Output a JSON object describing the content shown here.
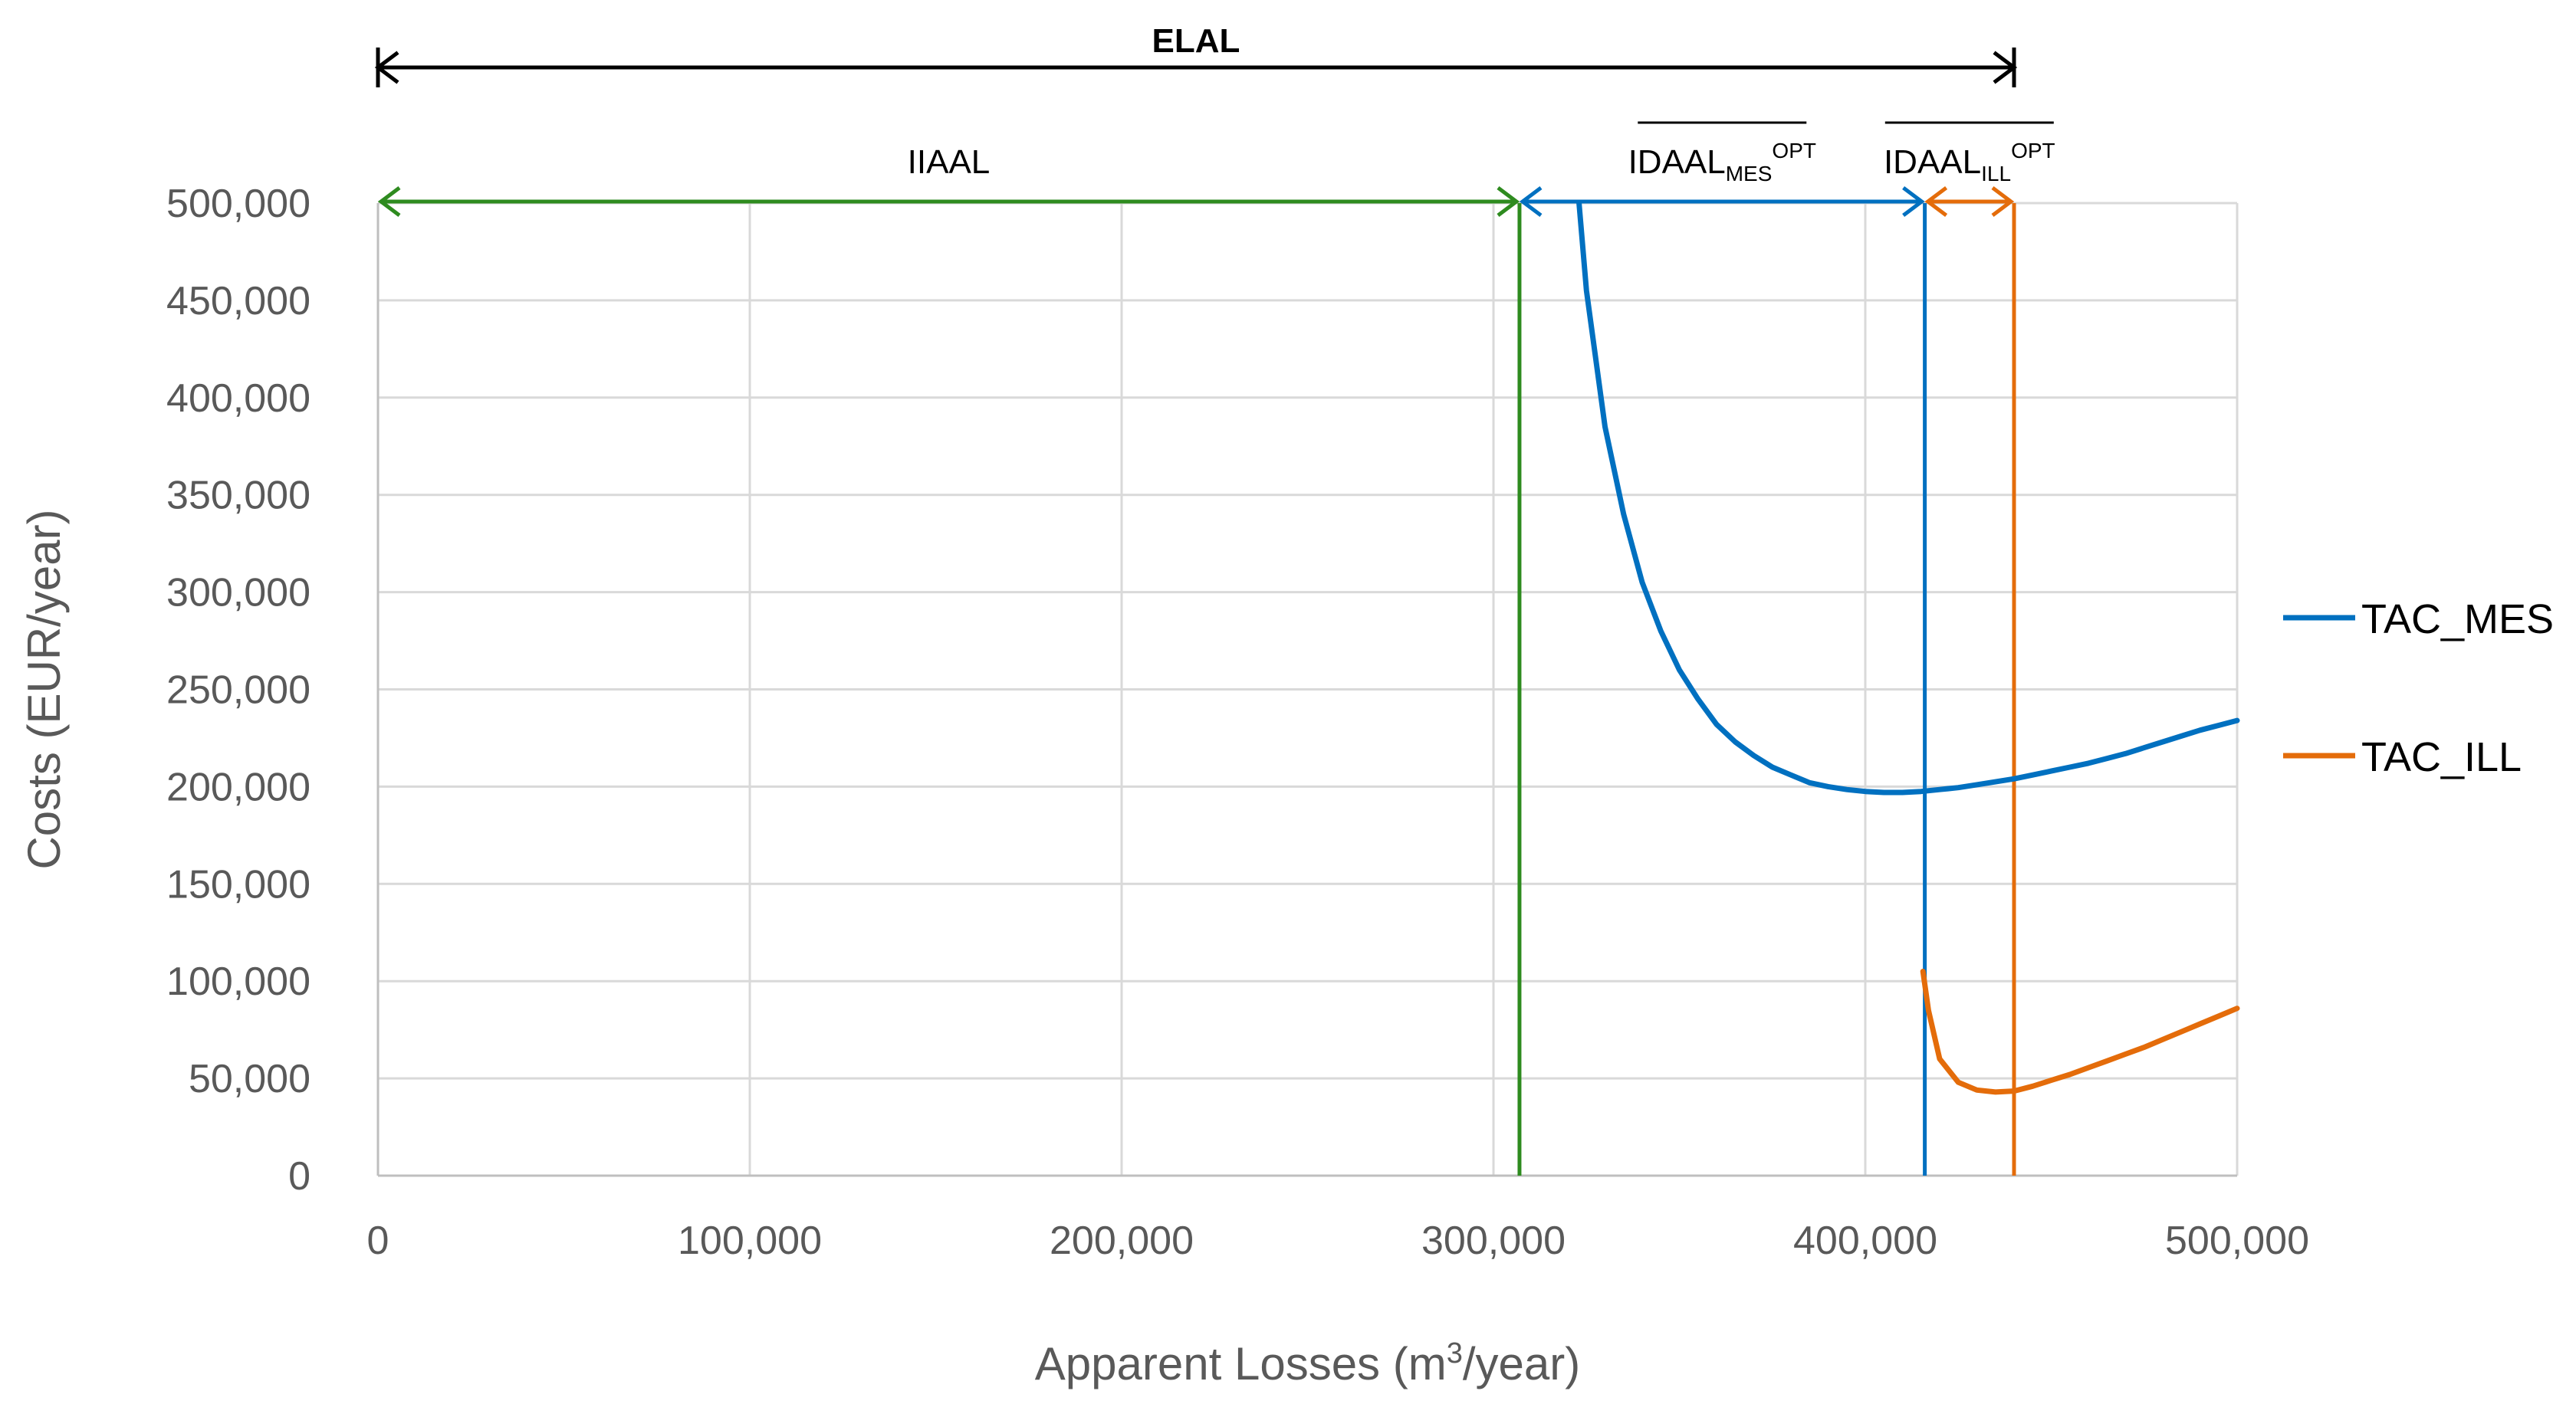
{
  "chart_data": {
    "type": "line",
    "xlabel": {
      "prefix": "Apparent Losses (m",
      "sup": "3",
      "suffix": "/year)"
    },
    "ylabel": "Costs (EUR/year)",
    "xlim": [
      0,
      500000
    ],
    "ylim": [
      0,
      500000
    ],
    "x_ticks": [
      0,
      100000,
      200000,
      300000,
      400000,
      500000
    ],
    "x_tick_labels": [
      "0",
      "100,000",
      "200,000",
      "300,000",
      "400,000",
      "500,000"
    ],
    "y_ticks": [
      0,
      50000,
      100000,
      150000,
      200000,
      250000,
      300000,
      350000,
      400000,
      450000,
      500000
    ],
    "y_tick_labels": [
      "0",
      "50,000",
      "100,000",
      "150,000",
      "200,000",
      "250,000",
      "300,000",
      "350,000",
      "400,000",
      "450,000",
      "500,000"
    ],
    "grid": true,
    "legend_position": "right",
    "series": [
      {
        "name": "TAC_MES",
        "color": "#0070C0",
        "x": [
          323000,
          325000,
          330000,
          335000,
          340000,
          345000,
          350000,
          355000,
          360000,
          365000,
          370000,
          375000,
          380000,
          385000,
          390000,
          395000,
          400000,
          405000,
          410000,
          415000,
          420000,
          425000,
          430000,
          435000,
          440000,
          445000,
          450000,
          455000,
          460000,
          465000,
          470000,
          475000,
          480000,
          485000,
          490000,
          495000,
          500000
        ],
        "values": [
          500000,
          455000,
          385000,
          340000,
          305000,
          280000,
          260000,
          245000,
          232000,
          223000,
          216000,
          210000,
          206000,
          202000,
          200000,
          198500,
          197500,
          197000,
          197000,
          197500,
          198500,
          199500,
          201000,
          202500,
          204000,
          206000,
          208000,
          210000,
          212000,
          214500,
          217000,
          220000,
          223000,
          226000,
          229000,
          231500,
          234000
        ]
      },
      {
        "name": "TAC_ILL",
        "color": "#E46C0A",
        "x": [
          415500,
          417000,
          420000,
          425000,
          430000,
          435000,
          440000,
          445000,
          450000,
          455000,
          460000,
          465000,
          470000,
          475000,
          480000,
          485000,
          490000,
          495000,
          500000
        ],
        "values": [
          105000,
          85000,
          60000,
          48000,
          44000,
          43000,
          43500,
          46000,
          49000,
          52000,
          55500,
          59000,
          62500,
          66000,
          70000,
          74000,
          78000,
          82000,
          86000
        ]
      }
    ],
    "vertical_lines": [
      {
        "x": 307000,
        "color": "#2E8B1F"
      },
      {
        "x": 416000,
        "color": "#0070C0"
      },
      {
        "x": 440000,
        "color": "#E46C0A"
      }
    ],
    "annotations": [
      {
        "type": "span",
        "label": "ELAL",
        "bold": true,
        "x_start": 0,
        "x_end": 440000,
        "color": "#000000",
        "row": "top"
      },
      {
        "type": "span",
        "label": "IIAAL",
        "x_start": 0,
        "x_end": 307000,
        "color": "#2E8B1F",
        "row": "top-of-plot"
      },
      {
        "type": "span",
        "label": "IDAAL",
        "sub": "MES",
        "sup": "OPT",
        "overline": true,
        "x_start": 307000,
        "x_end": 416000,
        "color": "#0070C0",
        "row": "top-of-plot"
      },
      {
        "type": "span",
        "label": "IDAAL",
        "sub": "ILL",
        "sup": "OPT",
        "overline": true,
        "x_start": 416000,
        "x_end": 440000,
        "color": "#E46C0A",
        "row": "top-of-plot"
      }
    ]
  }
}
